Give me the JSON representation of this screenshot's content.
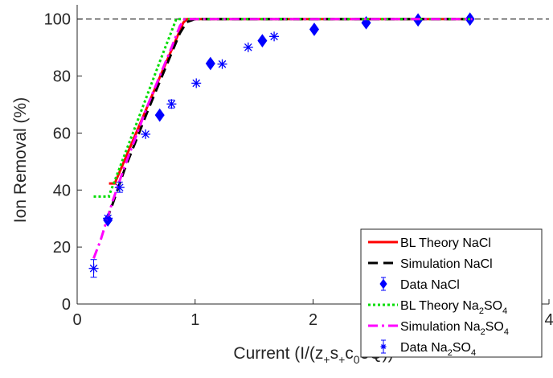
{
  "chart_data": {
    "type": "line",
    "xlabel": "Current (I/(z",
    "xlabel_parts": [
      "Current (I/(z",
      "+",
      "s",
      "+",
      "c",
      "0",
      "eQ))"
    ],
    "ylabel": "Ion Removal (%)",
    "xlim": [
      0,
      4
    ],
    "ylim": [
      0,
      105
    ],
    "xticks": [
      0,
      1,
      2,
      3,
      4
    ],
    "yticks": [
      0,
      20,
      40,
      60,
      80,
      100
    ],
    "xtick_labels": [
      "0",
      "1",
      "2",
      "3",
      "4"
    ],
    "ytick_labels": [
      "0",
      "20",
      "40",
      "60",
      "80",
      "100"
    ],
    "reference_line": {
      "y": 100,
      "style": "dashed",
      "color": "#000000"
    },
    "legend_position": "bottom-right",
    "series": [
      {
        "name": "BL Theory NaCl",
        "kind": "line",
        "color": "#ff0000",
        "dash": "solid",
        "points": [
          [
            0.27,
            42.3
          ],
          [
            0.32,
            42.3
          ],
          [
            0.32,
            42.5
          ],
          [
            0.5,
            60
          ],
          [
            0.7,
            79.5
          ],
          [
            0.9,
            98.8
          ],
          [
            0.93,
            100
          ],
          [
            3.35,
            100
          ]
        ]
      },
      {
        "name": "Simulation NaCl",
        "kind": "line",
        "color": "#000000",
        "dash": "dashed",
        "points": [
          [
            0.25,
            29.5
          ],
          [
            0.3,
            35
          ],
          [
            0.4,
            47
          ],
          [
            0.5,
            57.5
          ],
          [
            0.6,
            68
          ],
          [
            0.7,
            78
          ],
          [
            0.8,
            88
          ],
          [
            0.87,
            95
          ],
          [
            0.93,
            99
          ],
          [
            1.0,
            100
          ],
          [
            3.35,
            100
          ]
        ]
      },
      {
        "name": "Data NaCl",
        "kind": "markers",
        "marker": "diamond",
        "color": "#0000ff",
        "points": [
          [
            0.26,
            29.5
          ],
          [
            0.7,
            66.3
          ],
          [
            1.13,
            84.4
          ],
          [
            1.57,
            92.4
          ],
          [
            2.01,
            96.4
          ],
          [
            2.45,
            98.7
          ],
          [
            2.89,
            99.7
          ],
          [
            3.33,
            100
          ]
        ]
      },
      {
        "name": "BL Theory Na",
        "name_parts": [
          "BL Theory Na",
          "2",
          "SO",
          "4"
        ],
        "kind": "line",
        "color": "#00dd00",
        "dash": "dotted",
        "points": [
          [
            0.14,
            37.7
          ],
          [
            0.27,
            37.7
          ],
          [
            0.27,
            38
          ],
          [
            0.5,
            63
          ],
          [
            0.7,
            85
          ],
          [
            0.84,
            100
          ],
          [
            3.35,
            100
          ]
        ]
      },
      {
        "name": "Simulation Na",
        "name_parts": [
          "Simulation Na",
          "2",
          "SO",
          "4"
        ],
        "kind": "line",
        "color": "#ff00ff",
        "dash": "dashdot",
        "points": [
          [
            0.14,
            16
          ],
          [
            0.2,
            22.5
          ],
          [
            0.3,
            36
          ],
          [
            0.4,
            48
          ],
          [
            0.5,
            59
          ],
          [
            0.6,
            70
          ],
          [
            0.7,
            80
          ],
          [
            0.8,
            90
          ],
          [
            0.87,
            97.5
          ],
          [
            0.91,
            100
          ],
          [
            3.35,
            100
          ]
        ]
      },
      {
        "name": "Data Na",
        "name_parts": [
          "Data Na",
          "2",
          "SO",
          "4"
        ],
        "kind": "markers",
        "marker": "asterisk",
        "color": "#0000ff",
        "points": [
          [
            0.14,
            12.5
          ],
          [
            0.26,
            30.1
          ],
          [
            0.36,
            40.9
          ],
          [
            0.58,
            59.6
          ],
          [
            0.8,
            70.2
          ],
          [
            1.01,
            77.5
          ],
          [
            1.23,
            84.2
          ],
          [
            1.45,
            90.1
          ],
          [
            1.67,
            93.9
          ]
        ],
        "error": [
          [
            0.14,
            9.4,
            15.6
          ],
          [
            0.36,
            39.2,
            42.8
          ],
          [
            0.8,
            68.8,
            71.6
          ]
        ]
      }
    ]
  }
}
